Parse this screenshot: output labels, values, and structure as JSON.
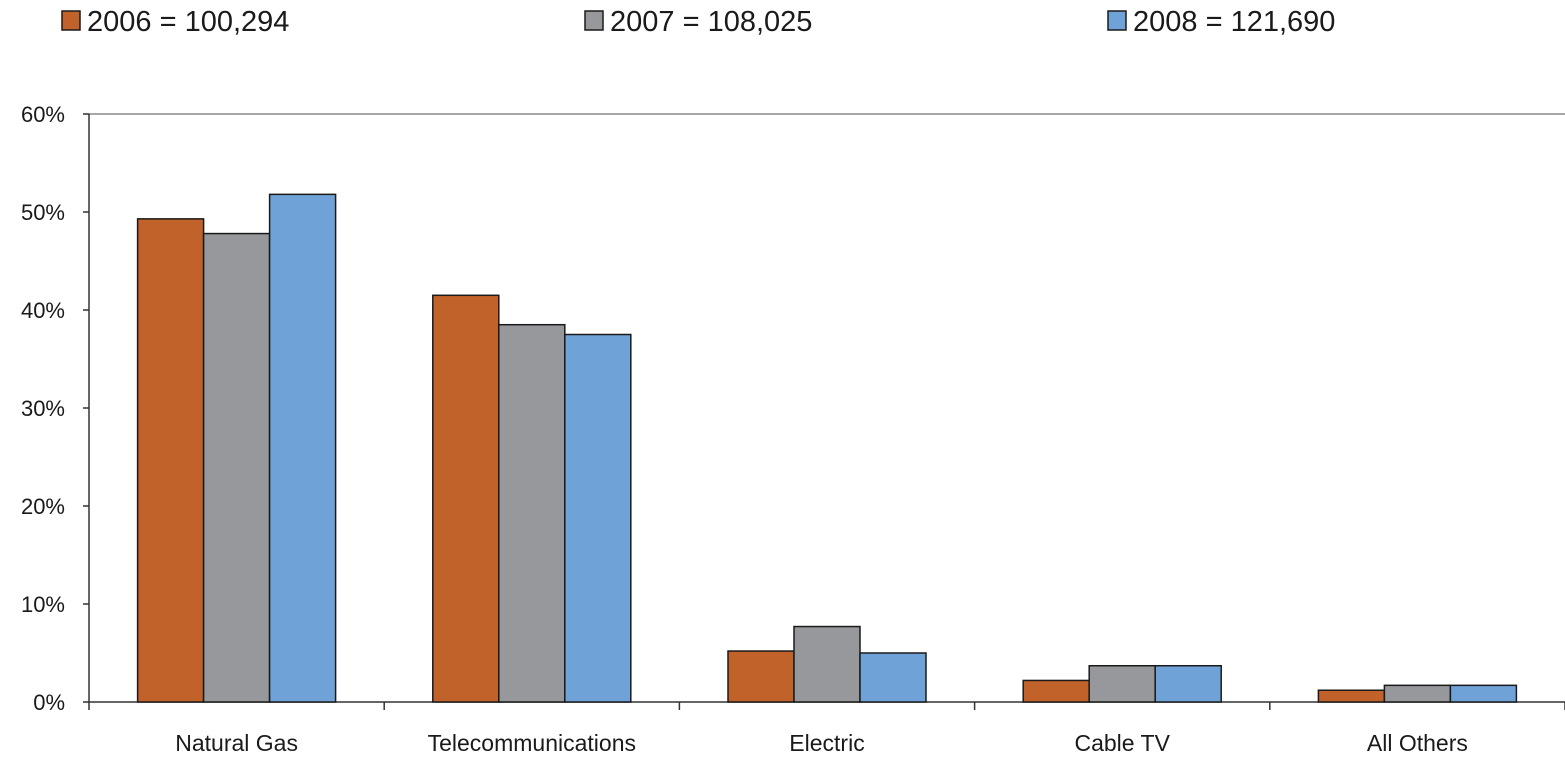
{
  "chart_data": {
    "type": "bar",
    "categories": [
      "Natural Gas",
      "Telecommunications",
      "Electric",
      "Cable TV",
      "All Others"
    ],
    "series": [
      {
        "name": "2006 = 100,294",
        "color": "#c0622a",
        "values": [
          49.3,
          41.5,
          5.2,
          2.2,
          1.2
        ]
      },
      {
        "name": "2007 = 108,025",
        "color": "#97989c",
        "values": [
          47.8,
          38.5,
          7.7,
          3.7,
          1.7
        ]
      },
      {
        "name": "2008 = 121,690",
        "color": "#6fa3d8",
        "values": [
          51.8,
          37.5,
          5.0,
          3.7,
          1.7
        ]
      }
    ],
    "y_ticks": [
      "0%",
      "10%",
      "20%",
      "30%",
      "40%",
      "50%",
      "60%"
    ],
    "ylim": [
      0,
      60
    ],
    "y_unit": "%",
    "legend_position": "top",
    "grid": false
  }
}
